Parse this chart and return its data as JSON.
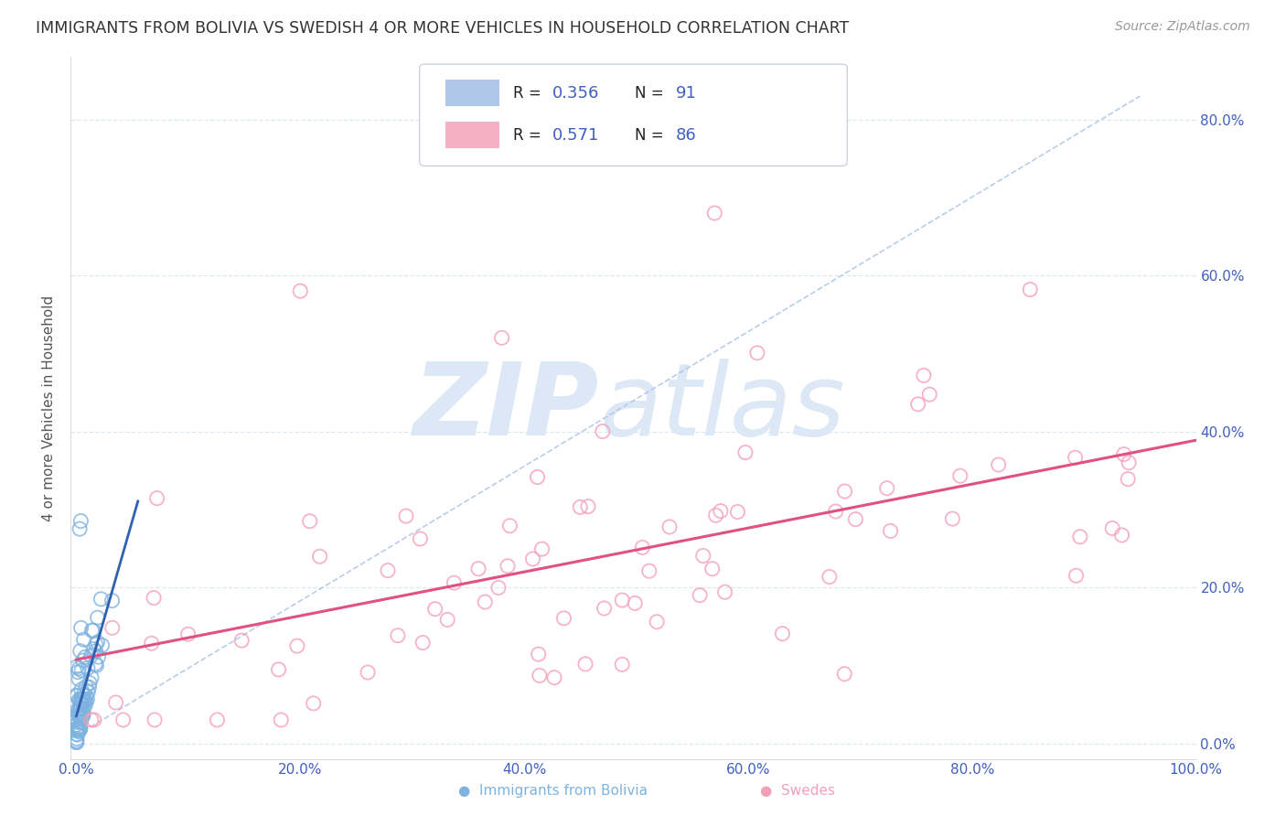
{
  "title": "IMMIGRANTS FROM BOLIVIA VS SWEDISH 4 OR MORE VEHICLES IN HOUSEHOLD CORRELATION CHART",
  "source": "Source: ZipAtlas.com",
  "ylabel": "4 or more Vehicles in Household",
  "xlim": [
    -0.005,
    1.0
  ],
  "ylim": [
    -0.02,
    0.88
  ],
  "x_ticks": [
    0.0,
    0.2,
    0.4,
    0.6,
    0.8,
    1.0
  ],
  "x_tick_labels": [
    "0.0%",
    "20.0%",
    "40.0%",
    "60.0%",
    "80.0%",
    "100.0%"
  ],
  "y_ticks": [
    0.0,
    0.2,
    0.4,
    0.6,
    0.8
  ],
  "y_tick_labels": [
    "0.0%",
    "20.0%",
    "40.0%",
    "60.0%",
    "80.0%"
  ],
  "blue_scatter_color": "#7eb3e0",
  "pink_scatter_color": "#f4a0b8",
  "blue_line_color": "#3060b0",
  "pink_line_color": "#e05080",
  "dashed_line_color": "#b0c8e8",
  "watermark_zip": "ZIP",
  "watermark_atlas": "atlas",
  "watermark_color": "#dce8f5",
  "bolivia_R": 0.356,
  "bolivia_N": 91,
  "swedes_R": 0.571,
  "swedes_N": 86,
  "background_color": "#ffffff",
  "grid_color": "#dce8f0",
  "legend_box_color": "#aec6e8",
  "legend_pink_color": "#f4b0c4",
  "r_text_color": "#4060c0",
  "n_text_color": "#4060c0",
  "label_color": "#4060c0",
  "bottom_blue_color": "#7eb3e0",
  "bottom_pink_color": "#f4a0b8"
}
